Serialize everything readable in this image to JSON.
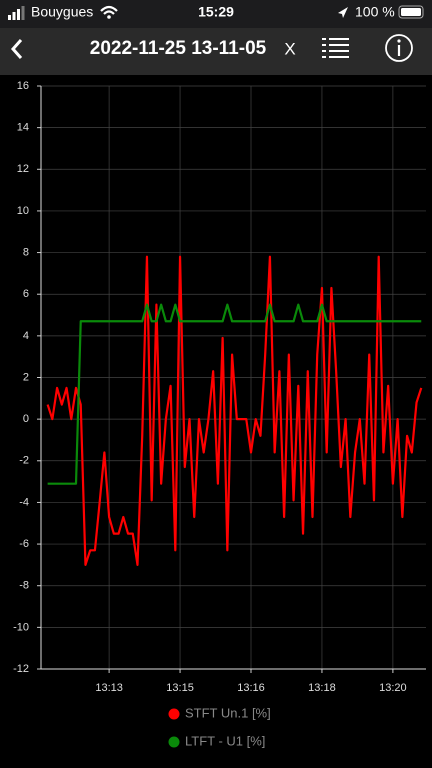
{
  "status_bar": {
    "carrier": "Bouygues",
    "time": "15:29",
    "battery": "100 %"
  },
  "header": {
    "title": "2022-11-25 13-11-05",
    "close": "X"
  },
  "chart_data": {
    "type": "line",
    "x": [
      12.2,
      12.3,
      12.4,
      12.5,
      12.6,
      12.7,
      12.8,
      12.9,
      13.0,
      13.1,
      13.2,
      13.3,
      13.4,
      13.5,
      13.6,
      13.7,
      13.8,
      13.9,
      14.0,
      14.1,
      14.2,
      14.3,
      14.4,
      14.5,
      14.6,
      14.7,
      14.8,
      14.9,
      15.0,
      15.1,
      15.2,
      15.3,
      15.4,
      15.5,
      15.6,
      15.7,
      15.8,
      15.9,
      16.0,
      16.1,
      16.2,
      16.3,
      16.4,
      16.5,
      16.6,
      16.7,
      16.8,
      16.9,
      17.0,
      17.1,
      17.2,
      17.3,
      17.4,
      17.5,
      17.6,
      17.7,
      17.8,
      17.9,
      18.0,
      18.1,
      18.2,
      18.3,
      18.4,
      18.5,
      18.6,
      18.7,
      18.8,
      18.9,
      19.0,
      19.1,
      19.2,
      19.3,
      19.4,
      19.5,
      19.6,
      19.7,
      19.8,
      19.9,
      20.0,
      20.1
    ],
    "series": [
      {
        "name": "STFT Un.1 [%]",
        "color": "#ff0000",
        "values": [
          0.7,
          0,
          1.5,
          0.7,
          1.5,
          0,
          1.5,
          0.7,
          -7.0,
          -6.3,
          -6.3,
          -4.0,
          -1.6,
          -4.7,
          -5.5,
          -5.5,
          -4.7,
          -5.5,
          -5.5,
          -7.0,
          -0.8,
          7.8,
          -3.9,
          5.5,
          -3.1,
          0,
          1.6,
          -6.3,
          7.8,
          -2.3,
          0,
          -4.7,
          0,
          -1.6,
          0,
          2.3,
          -3.1,
          3.9,
          -6.3,
          3.1,
          0,
          0,
          0,
          -1.6,
          0,
          -0.8,
          3.1,
          7.8,
          -1.6,
          2.3,
          -4.7,
          3.1,
          -3.9,
          1.6,
          -5.5,
          2.3,
          -4.7,
          3.1,
          6.3,
          -1.6,
          6.3,
          2.3,
          -2.3,
          0,
          -4.7,
          -1.6,
          0,
          -3.1,
          3.1,
          -3.9,
          7.8,
          -1.6,
          1.6,
          -3.1,
          0,
          -4.7,
          -0.8,
          -1.6,
          0.8,
          1.5
        ]
      },
      {
        "name": "LTFT - U1 [%]",
        "color": "#0a8a0a",
        "values": [
          -3.1,
          -3.1,
          -3.1,
          -3.1,
          -3.1,
          -3.1,
          -3.1,
          4.7,
          4.7,
          4.7,
          4.7,
          4.7,
          4.7,
          4.7,
          4.7,
          4.7,
          4.7,
          4.7,
          4.7,
          4.7,
          4.7,
          5.5,
          4.7,
          4.7,
          5.5,
          4.7,
          4.7,
          5.5,
          4.7,
          4.7,
          4.7,
          4.7,
          4.7,
          4.7,
          4.7,
          4.7,
          4.7,
          4.7,
          5.5,
          4.7,
          4.7,
          4.7,
          4.7,
          4.7,
          4.7,
          4.7,
          4.7,
          5.5,
          4.7,
          4.7,
          4.7,
          4.7,
          4.7,
          5.5,
          4.7,
          4.7,
          4.7,
          4.7,
          5.5,
          4.7,
          4.7,
          4.7,
          4.7,
          4.7,
          4.7,
          4.7,
          4.7,
          4.7,
          4.7,
          4.7,
          4.7,
          4.7,
          4.7,
          4.7,
          4.7,
          4.7,
          4.7,
          4.7,
          4.7,
          4.7
        ]
      }
    ],
    "xlim": [
      12.06,
      20.2
    ],
    "xticks": [
      {
        "value": 13.5,
        "label": "13:13"
      },
      {
        "value": 15.0,
        "label": "13:15"
      },
      {
        "value": 16.5,
        "label": "13:16"
      },
      {
        "value": 18.0,
        "label": "13:18"
      },
      {
        "value": 19.5,
        "label": "13:20"
      }
    ],
    "ylim": [
      -12,
      16
    ],
    "yticks": [
      -12,
      -10,
      -8,
      -6,
      -4,
      -2,
      0,
      2,
      4,
      6,
      8,
      10,
      12,
      14,
      16
    ],
    "grid": true
  }
}
